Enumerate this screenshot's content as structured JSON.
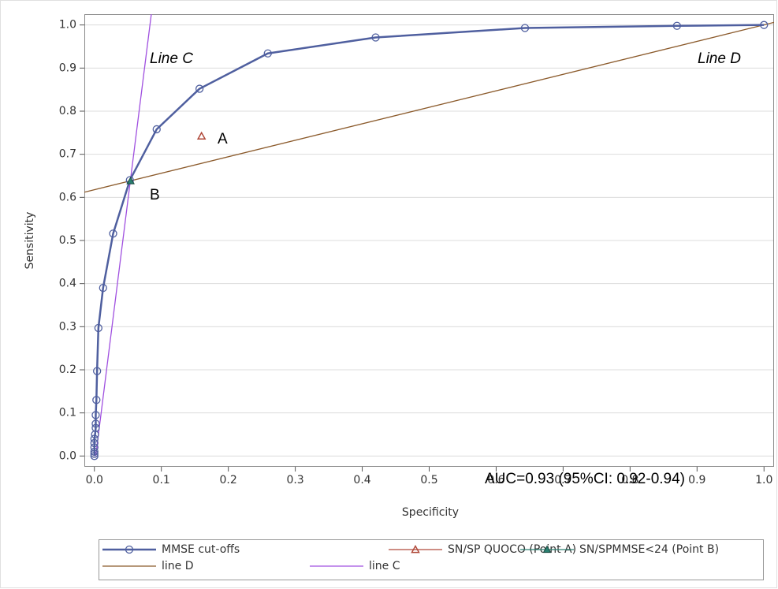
{
  "chart_data": {
    "type": "line",
    "xlabel": "Specificity",
    "ylabel": "Sensitivity",
    "xlim": [
      -0.015,
      1.015
    ],
    "ylim": [
      -0.025,
      1.025
    ],
    "xticks": [
      {
        "value": 0,
        "label": "0.0"
      },
      0.1,
      0.2,
      0.3,
      0.4,
      0.5,
      0.6,
      0.7,
      0.8,
      0.9,
      {
        "value": 1,
        "label": "1.0"
      }
    ],
    "yticks": [
      {
        "value": 0,
        "label": "0.0"
      },
      0.1,
      0.2,
      0.3,
      0.4,
      0.5,
      0.6,
      0.7,
      0.8,
      0.9,
      {
        "value": 1,
        "label": "1.0"
      }
    ],
    "grid": true,
    "legend": "bottom",
    "annotations": [
      "Line C",
      "Line D",
      "A",
      "B",
      "AUC=0.93 (95%CI: 0.92-0.94)"
    ],
    "series": [
      {
        "name": "MMSE cut-offs",
        "color": "#4f5f9f",
        "marker": "circle",
        "x": [
          0,
          0,
          0,
          0,
          0,
          0,
          0.001,
          0.002,
          0.002,
          0.002,
          0.003,
          0.004,
          0.006,
          0.013,
          0.028,
          0.053,
          0.093,
          0.157,
          0.259,
          0.42,
          0.643,
          0.87,
          1.0
        ],
        "values": [
          0,
          0.005,
          0.01,
          0.02,
          0.03,
          0.04,
          0.05,
          0.065,
          0.075,
          0.095,
          0.13,
          0.197,
          0.297,
          0.39,
          0.516,
          0.64,
          0.758,
          0.852,
          0.934,
          0.971,
          0.993,
          0.998,
          1.0
        ]
      },
      {
        "name": "SN/SP QUOCO (Point A)",
        "color": "#b0493a",
        "marker": "triangle",
        "x": [
          0.16
        ],
        "values": [
          0.742
        ]
      },
      {
        "name": "SN/SPMMSE<24 (Point B)",
        "color": "#2a7f70",
        "marker": "triangle-filled",
        "x": [
          0.054
        ],
        "values": [
          0.638
        ]
      },
      {
        "name": "line D",
        "color": "#8b5a2b",
        "marker": "none",
        "x": [
          -0.015,
          1.015
        ],
        "values": [
          0.612,
          1.006
        ]
      },
      {
        "name": "line C",
        "color": "#a050e0",
        "marker": "none",
        "x": [
          0.002,
          0.085
        ],
        "values": [
          0,
          1.025
        ]
      }
    ]
  }
}
